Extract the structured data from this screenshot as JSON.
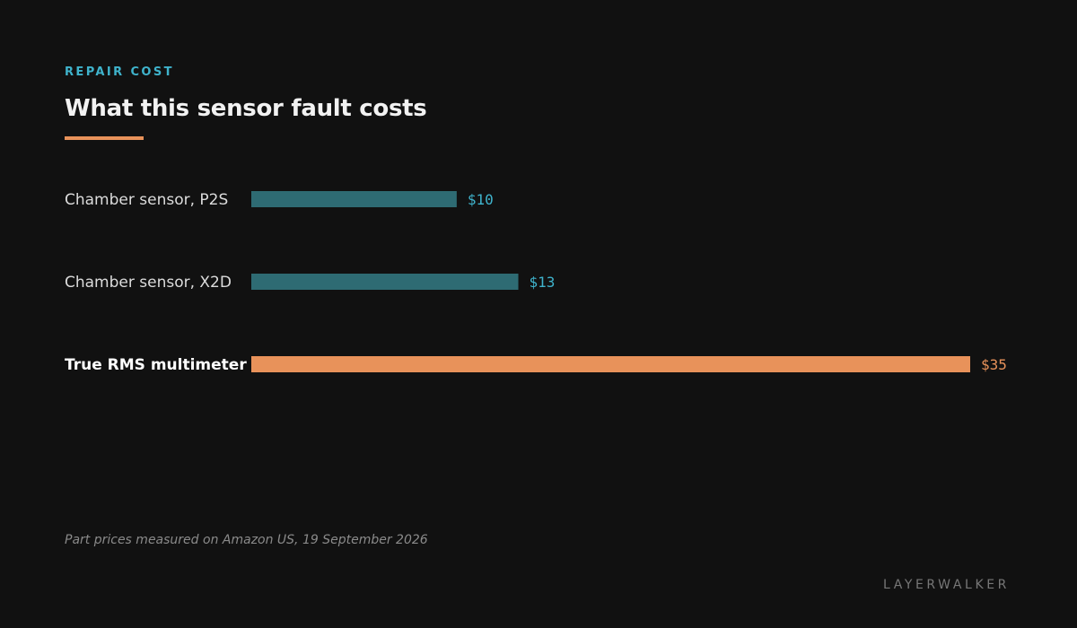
{
  "header": {
    "eyebrow": "REPAIR COST",
    "title": "What this sensor fault costs"
  },
  "chart_data": {
    "type": "bar",
    "orientation": "horizontal",
    "categories": [
      "Chamber sensor, P2S",
      "Chamber sensor, X2D",
      "True RMS multimeter"
    ],
    "values": [
      10,
      13,
      35
    ],
    "value_labels": [
      "$10",
      "$13",
      "$35"
    ],
    "highlighted": [
      false,
      false,
      true
    ],
    "title": "What this sensor fault costs",
    "xlabel": "",
    "ylabel": "",
    "xlim": [
      0,
      35
    ],
    "grid": false,
    "legend": "none"
  },
  "colors": {
    "background": "#111111",
    "bar": "#2e6b73",
    "bar_label": "#3fb3cc",
    "highlight": "#e8925a",
    "accent": "#3fb3cc"
  },
  "footer": {
    "note": "Part prices measured on Amazon US, 19 September 2026",
    "brand": "LAYERWALKER"
  }
}
